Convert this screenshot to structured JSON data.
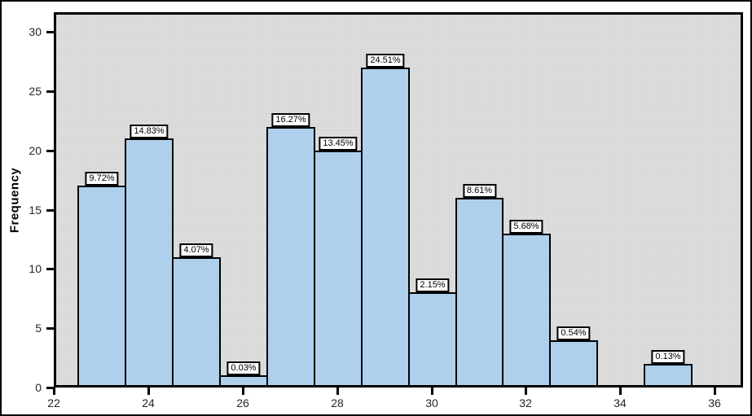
{
  "chart_data": {
    "type": "bar",
    "subtype": "histogram",
    "title": "",
    "xlabel": "",
    "ylabel": "Frequency",
    "bin_centers": [
      23,
      24,
      25,
      26,
      27,
      28,
      29,
      30,
      31,
      32,
      33,
      35
    ],
    "bin_width": 1,
    "frequencies": [
      17,
      21,
      11,
      1,
      22,
      20,
      27,
      8,
      16,
      13,
      4,
      2
    ],
    "bar_labels": [
      "9.72%",
      "14.83%",
      "4.07%",
      "0.03%",
      "16.27%",
      "13.45%",
      "24.51%",
      "2.15%",
      "8.61%",
      "5.68%",
      "0.54%",
      "0.13%"
    ],
    "x_ticks": [
      "22",
      "24",
      "26",
      "28",
      "30",
      "32",
      "34",
      "36"
    ],
    "x_tick_values": [
      22,
      24,
      26,
      28,
      30,
      32,
      34,
      36
    ],
    "y_ticks": [
      "0",
      "5",
      "10",
      "15",
      "20",
      "25",
      "30"
    ],
    "y_tick_values": [
      0,
      5,
      10,
      15,
      20,
      25,
      30
    ],
    "xlim": [
      22,
      36.6
    ],
    "ylim": [
      0,
      31.65
    ],
    "grid": "off",
    "legend": "none",
    "colors": {
      "bar_fill": "#aed0ec",
      "bar_border": "#000000",
      "plot_background": "#dbdbdb",
      "page_background": "#ffffff",
      "label_box_fill": "#ffffff",
      "label_box_border": "#000000",
      "axis_text": "#262626"
    }
  }
}
